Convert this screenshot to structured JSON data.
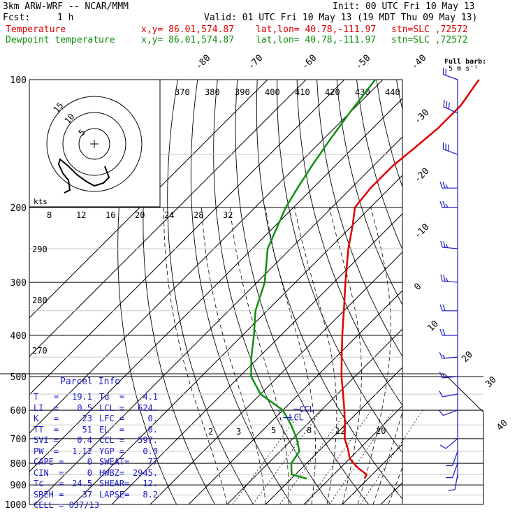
{
  "header": {
    "model": "3km ARW-WRF -- NCAR/MMM",
    "init": "Init: 00 UTC Fri 10 May 13",
    "fcst_label": "Fcst:",
    "fcst_value": "1 h",
    "valid": "Valid: 01 UTC Fri 10 May 13 (19 MDT Thu 09 May 13)",
    "temp_label": "Temperature",
    "dew_label": "Dewpoint temperature",
    "xy": "x,y= 86.01,574.87",
    "latlon": "lat,lon= 40.78,-111.97",
    "stn": "stn=SLC ,72572"
  },
  "barb_title": "Full barb:",
  "barb_unit": "5 m s⁻¹",
  "hodo_unit": "kts",
  "colors": {
    "temperature": "#e00000",
    "dewpoint": "#109010",
    "text_blue": "#1a1acc"
  },
  "parcel_info": {
    "title": "Parcel Info",
    "rows": [
      [
        "T   =",
        "19.1",
        "Td  =",
        "4.1"
      ],
      [
        "LI  =",
        "0.5",
        "LCL =",
        "624."
      ],
      [
        "K   =",
        "23",
        "LFC =",
        "0."
      ],
      [
        "TT  =",
        "51",
        "EL  =",
        "0."
      ],
      [
        "SVI =",
        "0.4",
        "CCL =",
        "597."
      ],
      [
        "PW  =",
        "1.12",
        "YGP =",
        "0.0"
      ],
      [
        "CAPE =",
        "0",
        "SWEAT=",
        "77"
      ],
      [
        "CIN  =",
        "0",
        "HWBZ=",
        "2945."
      ],
      [
        "Tc   =",
        "24.5",
        "SHEAR=",
        "12."
      ],
      [
        "SREH =",
        "37",
        "LAPSE=",
        "8.2"
      ],
      [
        "CELL = 037/13",
        "",
        "",
        ""
      ]
    ]
  },
  "chart_data": {
    "type": "line",
    "subtype": "skew-T log-P sounding",
    "y_axis": "pressure (hPa), log scale",
    "ylim": [
      1000,
      100
    ],
    "pressure_labels": [
      "100",
      "200",
      "300",
      "400",
      "500",
      "600",
      "700",
      "800",
      "900",
      "1000"
    ],
    "isotherm_labels": [
      "-80",
      "-70",
      "-60",
      "-50",
      "-40",
      "-30",
      "-20",
      "-10",
      "0",
      "10",
      "20",
      "30",
      "40"
    ],
    "theta_labels": [
      "290",
      "280",
      "270"
    ],
    "theta_e_labels": [
      "370",
      "380",
      "390",
      "400",
      "410",
      "420",
      "430",
      "440"
    ],
    "mixing_ratio_labels": [
      "2",
      "3",
      "5",
      "8",
      "12",
      "20"
    ],
    "hodograph_rings": [
      "5",
      "10",
      "15"
    ],
    "speed_labels": [
      "8",
      "12",
      "16",
      "20",
      "24",
      "28",
      "32"
    ],
    "lcl_labels": [
      "-CCL",
      "-LCL"
    ],
    "series": [
      {
        "name": "Temperature",
        "points": [
          [
            870,
            19.1
          ],
          [
            850,
            18.5
          ],
          [
            820,
            14.5
          ],
          [
            780,
            10
          ],
          [
            740,
            7
          ],
          [
            700,
            3.5
          ],
          [
            650,
            0
          ],
          [
            600,
            -4
          ],
          [
            550,
            -8.5
          ],
          [
            500,
            -13.5
          ],
          [
            450,
            -18.5
          ],
          [
            400,
            -24
          ],
          [
            350,
            -30
          ],
          [
            300,
            -37
          ],
          [
            250,
            -45
          ],
          [
            220,
            -50
          ],
          [
            200,
            -54
          ],
          [
            180,
            -55
          ],
          [
            160,
            -55
          ],
          [
            145,
            -54
          ],
          [
            130,
            -53
          ],
          [
            115,
            -53
          ],
          [
            100,
            -55
          ]
        ]
      },
      {
        "name": "Dewpoint temperature",
        "points": [
          [
            870,
            4.1
          ],
          [
            850,
            -1
          ],
          [
            800,
            -4
          ],
          [
            750,
            -5
          ],
          [
            700,
            -9
          ],
          [
            650,
            -14
          ],
          [
            600,
            -20
          ],
          [
            550,
            -30
          ],
          [
            500,
            -37
          ],
          [
            450,
            -42
          ],
          [
            400,
            -47
          ],
          [
            350,
            -53
          ],
          [
            300,
            -58
          ],
          [
            250,
            -66
          ],
          [
            200,
            -72
          ],
          [
            180,
            -74
          ],
          [
            160,
            -76
          ],
          [
            140,
            -78
          ],
          [
            120,
            -80
          ],
          [
            100,
            -82
          ]
        ]
      }
    ],
    "wind_barbs": [
      {
        "p": 100,
        "dir": 290,
        "spd": 20
      },
      {
        "p": 120,
        "dir": 295,
        "spd": 30
      },
      {
        "p": 150,
        "dir": 290,
        "spd": 30
      },
      {
        "p": 180,
        "dir": 270,
        "spd": 25
      },
      {
        "p": 200,
        "dir": 270,
        "spd": 25
      },
      {
        "p": 250,
        "dir": 275,
        "spd": 25
      },
      {
        "p": 300,
        "dir": 275,
        "spd": 25
      },
      {
        "p": 350,
        "dir": 270,
        "spd": 20
      },
      {
        "p": 400,
        "dir": 270,
        "spd": 20
      },
      {
        "p": 450,
        "dir": 265,
        "spd": 15
      },
      {
        "p": 500,
        "dir": 265,
        "spd": 15
      },
      {
        "p": 550,
        "dir": 260,
        "spd": 10
      },
      {
        "p": 600,
        "dir": 250,
        "spd": 10
      },
      {
        "p": 700,
        "dir": 230,
        "spd": 10
      },
      {
        "p": 750,
        "dir": 200,
        "spd": 10
      },
      {
        "p": 800,
        "dir": 200,
        "spd": 10
      },
      {
        "p": 850,
        "dir": 190,
        "spd": 10
      }
    ]
  }
}
